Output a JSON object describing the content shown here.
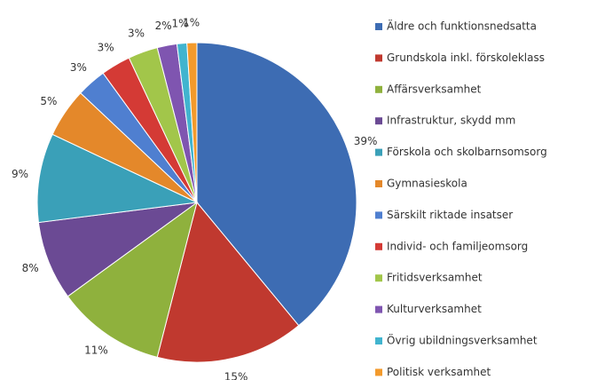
{
  "chart_data": {
    "type": "pie",
    "categories": [
      "Äldre och funktionsnedsatta",
      "Grundskola inkl. förskoleklass",
      "Affärsverksamhet",
      "Infrastruktur, skydd mm",
      "Förskola och skolbarnsomsorg",
      "Gymnasieskola",
      "Särskilt riktade insatser",
      "Individ- och familjeomsorg",
      "Fritidsverksamhet",
      "Kulturverksamhet",
      "Övrig ubildningsverksamhet",
      "Politisk verksamhet"
    ],
    "values": [
      39,
      15,
      11,
      8,
      9,
      5,
      3,
      3,
      3,
      2,
      1,
      1
    ],
    "value_labels": [
      "39%",
      "15%",
      "11%",
      "8%",
      "9%",
      "5%",
      "3%",
      "3%",
      "3%",
      "2%",
      "1%",
      "1%"
    ],
    "colors": [
      "#3d6cb3",
      "#c0392f",
      "#8fb13d",
      "#6b4a94",
      "#3aa0b8",
      "#e4882a",
      "#4f7fd0",
      "#d43a35",
      "#a2c64a",
      "#7f55b0",
      "#41b4cf",
      "#f39a2c"
    ],
    "legend": "right"
  }
}
